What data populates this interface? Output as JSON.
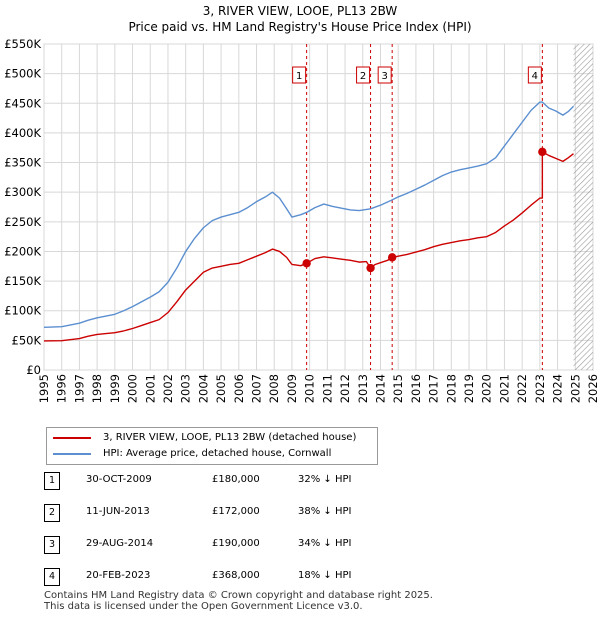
{
  "title": {
    "line1": "3, RIVER VIEW, LOOE, PL13 2BW",
    "line2": "Price paid vs. HM Land Registry's House Price Index (HPI)"
  },
  "colors": {
    "red": "#cc0000",
    "blue": "#5b8fd0",
    "grid": "#d8d8d8",
    "future_hatch": "#9a9a9a"
  },
  "chart_data": {
    "type": "line",
    "title": "3, RIVER VIEW, LOOE, PL13 2BW — Price paid vs. HM Land Registry's House Price Index (HPI)",
    "xlabel": "",
    "ylabel": "",
    "xlim": [
      1995,
      2026
    ],
    "ylim": [
      0,
      550000
    ],
    "x_ticks": [
      1995,
      1996,
      1997,
      1998,
      1999,
      2000,
      2001,
      2002,
      2003,
      2004,
      2005,
      2006,
      2007,
      2008,
      2009,
      2010,
      2011,
      2012,
      2013,
      2014,
      2015,
      2016,
      2017,
      2018,
      2019,
      2020,
      2021,
      2022,
      2023,
      2024,
      2025,
      2026
    ],
    "y_ticks": [
      0,
      50000,
      100000,
      150000,
      200000,
      250000,
      300000,
      350000,
      400000,
      450000,
      500000,
      550000
    ],
    "y_tick_labels": [
      "£0",
      "£50K",
      "£100K",
      "£150K",
      "£200K",
      "£250K",
      "£300K",
      "£350K",
      "£400K",
      "£450K",
      "£500K",
      "£550K"
    ],
    "grid": true,
    "future_from": 2024.9,
    "series": [
      {
        "name": "3, RIVER VIEW, LOOE, PL13 2BW (detached house)",
        "color": "#cc0000",
        "points": [
          [
            1995.0,
            49000
          ],
          [
            1996.0,
            49500
          ],
          [
            1997.0,
            53000
          ],
          [
            1997.5,
            57000
          ],
          [
            1998.0,
            60000
          ],
          [
            1999.0,
            63000
          ],
          [
            1999.5,
            66000
          ],
          [
            2000.0,
            70000
          ],
          [
            2000.5,
            75000
          ],
          [
            2001.0,
            80000
          ],
          [
            2001.5,
            85000
          ],
          [
            2002.0,
            97000
          ],
          [
            2002.5,
            115000
          ],
          [
            2003.0,
            135000
          ],
          [
            2003.5,
            150000
          ],
          [
            2004.0,
            165000
          ],
          [
            2004.5,
            172000
          ],
          [
            2005.0,
            175000
          ],
          [
            2005.5,
            178000
          ],
          [
            2006.0,
            180000
          ],
          [
            2006.5,
            186000
          ],
          [
            2007.0,
            192000
          ],
          [
            2007.5,
            198000
          ],
          [
            2007.9,
            204000
          ],
          [
            2008.3,
            200000
          ],
          [
            2008.7,
            190000
          ],
          [
            2009.0,
            178000
          ],
          [
            2009.5,
            176000
          ],
          [
            2009.83,
            180000
          ],
          [
            2010.3,
            188000
          ],
          [
            2010.8,
            191000
          ],
          [
            2011.3,
            189000
          ],
          [
            2011.8,
            187000
          ],
          [
            2012.3,
            185000
          ],
          [
            2012.8,
            182000
          ],
          [
            2013.2,
            183000
          ],
          [
            2013.44,
            172000
          ],
          [
            2013.7,
            178000
          ],
          [
            2014.0,
            181000
          ],
          [
            2014.4,
            185000
          ],
          [
            2014.66,
            190000
          ],
          [
            2015.0,
            192000
          ],
          [
            2015.5,
            195000
          ],
          [
            2016.0,
            199000
          ],
          [
            2016.5,
            203000
          ],
          [
            2017.0,
            208000
          ],
          [
            2017.5,
            212000
          ],
          [
            2018.0,
            215000
          ],
          [
            2018.5,
            218000
          ],
          [
            2019.0,
            220000
          ],
          [
            2019.5,
            223000
          ],
          [
            2020.0,
            225000
          ],
          [
            2020.5,
            232000
          ],
          [
            2021.0,
            243000
          ],
          [
            2021.5,
            253000
          ],
          [
            2022.0,
            265000
          ],
          [
            2022.5,
            278000
          ],
          [
            2023.0,
            290000
          ],
          [
            2023.14,
            290000
          ],
          [
            2023.14,
            368000
          ],
          [
            2023.5,
            362000
          ],
          [
            2023.9,
            357000
          ],
          [
            2024.3,
            352000
          ],
          [
            2024.6,
            358000
          ],
          [
            2024.9,
            365000
          ]
        ]
      },
      {
        "name": "HPI: Average price, detached house, Cornwall",
        "color": "#5b8fd0",
        "points": [
          [
            1995.0,
            72000
          ],
          [
            1996.0,
            73000
          ],
          [
            1997.0,
            79000
          ],
          [
            1997.5,
            84000
          ],
          [
            1998.0,
            88000
          ],
          [
            1999.0,
            94000
          ],
          [
            1999.5,
            100000
          ],
          [
            2000.0,
            107000
          ],
          [
            2000.5,
            115000
          ],
          [
            2001.0,
            123000
          ],
          [
            2001.5,
            132000
          ],
          [
            2002.0,
            148000
          ],
          [
            2002.5,
            172000
          ],
          [
            2003.0,
            200000
          ],
          [
            2003.5,
            222000
          ],
          [
            2004.0,
            240000
          ],
          [
            2004.5,
            252000
          ],
          [
            2005.0,
            258000
          ],
          [
            2005.5,
            262000
          ],
          [
            2006.0,
            266000
          ],
          [
            2006.5,
            274000
          ],
          [
            2007.0,
            284000
          ],
          [
            2007.5,
            292000
          ],
          [
            2007.9,
            300000
          ],
          [
            2008.3,
            290000
          ],
          [
            2008.7,
            272000
          ],
          [
            2009.0,
            258000
          ],
          [
            2009.5,
            262000
          ],
          [
            2009.83,
            266000
          ],
          [
            2010.3,
            274000
          ],
          [
            2010.8,
            280000
          ],
          [
            2011.3,
            276000
          ],
          [
            2011.8,
            273000
          ],
          [
            2012.3,
            270000
          ],
          [
            2012.8,
            269000
          ],
          [
            2013.44,
            272000
          ],
          [
            2014.0,
            278000
          ],
          [
            2014.66,
            287000
          ],
          [
            2015.0,
            292000
          ],
          [
            2015.5,
            298000
          ],
          [
            2016.0,
            305000
          ],
          [
            2016.5,
            312000
          ],
          [
            2017.0,
            320000
          ],
          [
            2017.5,
            328000
          ],
          [
            2018.0,
            334000
          ],
          [
            2018.5,
            338000
          ],
          [
            2019.0,
            341000
          ],
          [
            2019.5,
            344000
          ],
          [
            2020.0,
            348000
          ],
          [
            2020.5,
            358000
          ],
          [
            2021.0,
            378000
          ],
          [
            2021.5,
            398000
          ],
          [
            2022.0,
            418000
          ],
          [
            2022.5,
            438000
          ],
          [
            2023.0,
            452000
          ],
          [
            2023.14,
            452000
          ],
          [
            2023.5,
            442000
          ],
          [
            2023.9,
            437000
          ],
          [
            2024.3,
            430000
          ],
          [
            2024.6,
            436000
          ],
          [
            2024.9,
            445000
          ]
        ]
      }
    ],
    "markers": [
      {
        "label": "1",
        "x": 2009.83,
        "price": 180000
      },
      {
        "label": "2",
        "x": 2013.44,
        "price": 172000
      },
      {
        "label": "3",
        "x": 2014.66,
        "price": 190000
      },
      {
        "label": "4",
        "x": 2023.14,
        "price": 368000
      }
    ]
  },
  "legend": {
    "items": [
      {
        "label": "3, RIVER VIEW, LOOE, PL13 2BW (detached house)",
        "color": "#cc0000"
      },
      {
        "label": "HPI: Average price, detached house, Cornwall",
        "color": "#5b8fd0"
      }
    ]
  },
  "transactions": [
    {
      "num": "1",
      "date": "30-OCT-2009",
      "price": "£180,000",
      "hpi": "32% ↓ HPI"
    },
    {
      "num": "2",
      "date": "11-JUN-2013",
      "price": "£172,000",
      "hpi": "38% ↓ HPI"
    },
    {
      "num": "3",
      "date": "29-AUG-2014",
      "price": "£190,000",
      "hpi": "34% ↓ HPI"
    },
    {
      "num": "4",
      "date": "20-FEB-2023",
      "price": "£368,000",
      "hpi": "18% ↓ HPI"
    }
  ],
  "footer": {
    "line1": "Contains HM Land Registry data © Crown copyright and database right 2025.",
    "line2": "This data is licensed under the Open Government Licence v3.0."
  }
}
